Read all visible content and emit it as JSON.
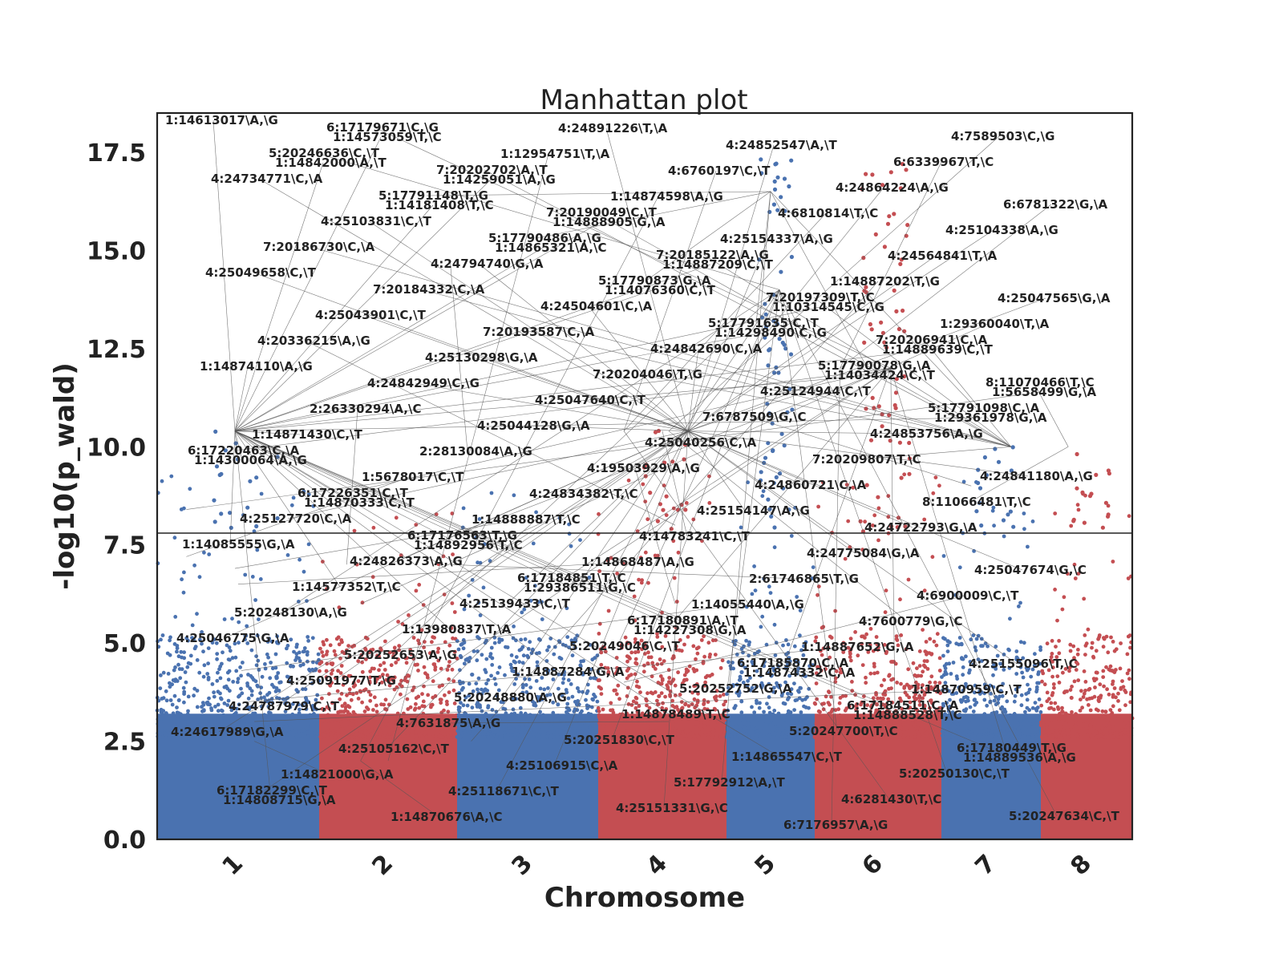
{
  "chart_data": {
    "type": "scatter",
    "title": "Manhattan plot",
    "xlabel": "Chromosome",
    "ylabel": "-log10(p_wald)",
    "ylim": [
      0,
      18.5
    ],
    "yticks": [
      "0.0",
      "2.5",
      "5.0",
      "7.5",
      "10.0",
      "12.5",
      "15.0",
      "17.5"
    ],
    "ytick_values": [
      0,
      2.5,
      5,
      7.5,
      10,
      12.5,
      15,
      17.5
    ],
    "significance_threshold": 7.8,
    "grid": false,
    "legend": "none",
    "colors": {
      "odd": "#4a72b0",
      "even": "#c44e52",
      "threshold": "#222222",
      "leader": "#555555",
      "frame": "#222222"
    },
    "chromosomes": [
      {
        "name": "1",
        "color": "#4a72b0",
        "peak": 10.5
      },
      {
        "name": "2",
        "color": "#c44e52",
        "peak": 6.5
      },
      {
        "name": "3",
        "color": "#4a72b0",
        "peak": 7.0
      },
      {
        "name": "4",
        "color": "#c44e52",
        "peak": 10.5
      },
      {
        "name": "5",
        "color": "#4a72b0",
        "peak": 17.5
      },
      {
        "name": "6",
        "color": "#c44e52",
        "peak": 17.5
      },
      {
        "name": "7",
        "color": "#4a72b0",
        "peak": 10.0
      },
      {
        "name": "8",
        "color": "#c44e52",
        "peak": 10.0
      }
    ],
    "annotations": [
      {
        "label": "1:14613017\\A,\\G",
        "chr": 0,
        "pos": 0.48,
        "y": 10.4
      },
      {
        "label": "1:14842000\\A,\\T",
        "chr": 0,
        "pos": 0.48,
        "y": 10.4
      },
      {
        "label": "1:14181408\\T,\\C",
        "chr": 0,
        "pos": 0.48,
        "y": 10.4
      },
      {
        "label": "1:14865321\\A,\\C",
        "chr": 0,
        "pos": 0.48,
        "y": 10.4
      },
      {
        "label": "1:14076360\\C,\\T",
        "chr": 0,
        "pos": 0.48,
        "y": 10.4
      },
      {
        "label": "1:14298490\\C,\\G",
        "chr": 0,
        "pos": 0.48,
        "y": 10.4
      },
      {
        "label": "1:14034424\\C,\\T",
        "chr": 0,
        "pos": 0.48,
        "y": 10.4
      },
      {
        "label": "1:29361978\\G,\\A",
        "chr": 0,
        "pos": 0.48,
        "y": 10.4
      },
      {
        "label": "1:14300064\\A,\\G",
        "chr": 0,
        "pos": 0.48,
        "y": 10.4
      },
      {
        "label": "1:14870333\\C,\\T",
        "chr": 0,
        "pos": 0.48,
        "y": 10.4
      },
      {
        "label": "1:14892956\\T,\\C",
        "chr": 0,
        "pos": 0.48,
        "y": 10.4
      },
      {
        "label": "1:29386511\\G,\\C",
        "chr": 0,
        "pos": 0.48,
        "y": 10.4
      },
      {
        "label": "1:14227308\\G,\\A",
        "chr": 0,
        "pos": 0.48,
        "y": 10.4
      },
      {
        "label": "1:14874332\\C,\\A",
        "chr": 0,
        "pos": 0.48,
        "y": 10.4
      },
      {
        "label": "1:14888528\\T,\\C",
        "chr": 0,
        "pos": 0.48,
        "y": 10.4
      },
      {
        "label": "1:14889536\\A,\\G",
        "chr": 0,
        "pos": 0.48,
        "y": 10.4
      },
      {
        "label": "1:14808715\\G,\\A",
        "chr": 0,
        "pos": 0.48,
        "y": 10.4
      },
      {
        "label": "1:14573059\\T,\\C",
        "chr": 0,
        "pos": 0.48,
        "y": 10.4
      },
      {
        "label": "1:14259051\\A,\\G",
        "chr": 0,
        "pos": 0.48,
        "y": 10.4
      },
      {
        "label": "1:14888905\\G,\\A",
        "chr": 0,
        "pos": 0.48,
        "y": 10.4
      },
      {
        "label": "1:14887209\\C,\\T",
        "chr": 0,
        "pos": 0.48,
        "y": 10.4
      },
      {
        "label": "1:10314545\\C,\\G",
        "chr": 0,
        "pos": 0.48,
        "y": 10.4
      },
      {
        "label": "1:14889639\\C,\\T",
        "chr": 0,
        "pos": 0.48,
        "y": 10.4
      },
      {
        "label": "1:5658499\\G,\\A",
        "chr": 0,
        "pos": 0.18,
        "y": 8.4
      },
      {
        "label": "1:14871430\\C,\\T",
        "chr": 0,
        "pos": 0.48,
        "y": 10.4
      },
      {
        "label": "1:5678017\\C,\\T",
        "chr": 0,
        "pos": 0.18,
        "y": 7.2
      },
      {
        "label": "1:14888887\\T,\\C",
        "chr": 0,
        "pos": 0.48,
        "y": 6.9
      },
      {
        "label": "1:14868487\\A,\\G",
        "chr": 0,
        "pos": 0.5,
        "y": 6.5
      },
      {
        "label": "1:14055440\\A,\\G",
        "chr": 0,
        "pos": 0.52,
        "y": 4.3
      },
      {
        "label": "1:14887652\\G,\\A",
        "chr": 0,
        "pos": 0.55,
        "y": 3.5
      },
      {
        "label": "1:14870959\\C,\\T",
        "chr": 0,
        "pos": 0.6,
        "y": 3.0
      },
      {
        "label": "4:24617989\\G,\\A",
        "chr": 3,
        "pos": 0.7,
        "y": 10.4
      },
      {
        "label": "1:14821000\\G,\\A",
        "chr": 0,
        "pos": 0.6,
        "y": 2.5
      },
      {
        "label": "1:14870676\\A,\\C",
        "chr": 1,
        "pos": 0.3,
        "y": 2.0
      },
      {
        "label": "1:12954751\\T,\\A",
        "chr": 1,
        "pos": 0.5,
        "y": 2.0
      },
      {
        "label": "1:14874598\\A,\\G",
        "chr": 1,
        "pos": 0.3,
        "y": 2.0
      },
      {
        "label": "4:25154337\\A,\\G",
        "chr": 3,
        "pos": 0.7,
        "y": 10.4
      },
      {
        "label": "1:14887202\\T,\\G",
        "chr": 2,
        "pos": 0.1,
        "y": 2.5
      },
      {
        "label": "1:29360040\\T,\\A",
        "chr": 1,
        "pos": 0.3,
        "y": 6.0
      },
      {
        "label": "1:14874110\\A,\\G",
        "chr": 0,
        "pos": 0.48,
        "y": 10.4
      },
      {
        "label": "2:26330294\\A,\\C",
        "chr": 1,
        "pos": 0.2,
        "y": 7.0
      },
      {
        "label": "2:28130084\\A,\\G",
        "chr": 1,
        "pos": 0.95,
        "y": 14.7
      },
      {
        "label": "4:24834382\\T,\\C",
        "chr": 3,
        "pos": 0.7,
        "y": 10.4
      },
      {
        "label": "4:14783241\\C,\\T",
        "chr": 3,
        "pos": 0.5,
        "y": 10.4
      },
      {
        "label": "2:61746865\\T,\\G",
        "chr": 1,
        "pos": 0.95,
        "y": 7.0
      },
      {
        "label": "4:7600779\\G,\\C",
        "chr": 3,
        "pos": 0.55,
        "y": 10.4
      },
      {
        "label": "4:25155096\\T,\\C",
        "chr": 3,
        "pos": 0.7,
        "y": 10.4
      },
      {
        "label": "4:24787979\\C,\\T",
        "chr": 3,
        "pos": 0.7,
        "y": 10.4
      },
      {
        "label": "4:25105162\\C,\\T",
        "chr": 3,
        "pos": 0.7,
        "y": 10.4
      },
      {
        "label": "4:25118671\\C,\\T",
        "chr": 3,
        "pos": 0.7,
        "y": 10.4
      },
      {
        "label": "4:24891226\\T,\\A",
        "chr": 3,
        "pos": 0.7,
        "y": 10.4
      },
      {
        "label": "4:6760197\\C,\\T",
        "chr": 3,
        "pos": 0.2,
        "y": 10.4
      },
      {
        "label": "4:6810814\\T,\\C",
        "chr": 3,
        "pos": 0.2,
        "y": 10.4
      },
      {
        "label": "4:24564841\\T,\\A",
        "chr": 3,
        "pos": 0.7,
        "y": 10.4
      },
      {
        "label": "4:25047565\\G,\\A",
        "chr": 3,
        "pos": 0.7,
        "y": 10.4
      },
      {
        "label": "4:20336215\\A,\\G",
        "chr": 3,
        "pos": 0.6,
        "y": 8.0
      },
      {
        "label": "4:24842949\\C,\\G",
        "chr": 3,
        "pos": 0.7,
        "y": 10.4
      },
      {
        "label": "4:25044128\\G,\\A",
        "chr": 3,
        "pos": 0.7,
        "y": 10.4
      },
      {
        "label": "4:19503929\\A,\\G",
        "chr": 3,
        "pos": 0.6,
        "y": 6.0
      },
      {
        "label": "4:25154147\\A,\\G",
        "chr": 3,
        "pos": 0.7,
        "y": 10.4
      },
      {
        "label": "4:24775084\\G,\\A",
        "chr": 3,
        "pos": 0.7,
        "y": 10.4
      },
      {
        "label": "4:6900009\\C,\\T",
        "chr": 3,
        "pos": 0.2,
        "y": 4.0
      },
      {
        "label": "4:25046775\\G,\\A",
        "chr": 3,
        "pos": 0.7,
        "y": 10.4
      },
      {
        "label": "4:25091977\\T,\\G",
        "chr": 3,
        "pos": 0.7,
        "y": 10.4
      },
      {
        "label": "4:7631875\\A,\\G",
        "chr": 3,
        "pos": 0.55,
        "y": 3.0
      },
      {
        "label": "4:25106915\\C,\\A",
        "chr": 3,
        "pos": 0.7,
        "y": 10.4
      },
      {
        "label": "4:25151331\\G,\\C",
        "chr": 3,
        "pos": 0.7,
        "y": 10.4
      },
      {
        "label": "4:24852547\\A,\\T",
        "chr": 3,
        "pos": 0.7,
        "y": 10.4
      },
      {
        "label": "4:24864224\\A,\\G",
        "chr": 3,
        "pos": 0.7,
        "y": 10.4
      },
      {
        "label": "4:25104338\\A,\\G",
        "chr": 3,
        "pos": 0.7,
        "y": 10.4
      },
      {
        "label": "4:25049658\\C,\\T",
        "chr": 3,
        "pos": 0.7,
        "y": 10.4
      },
      {
        "label": "4:25043901\\C,\\T",
        "chr": 3,
        "pos": 0.7,
        "y": 10.4
      },
      {
        "label": "4:25130298\\G,\\A",
        "chr": 3,
        "pos": 0.7,
        "y": 10.4
      },
      {
        "label": "4:25047640\\C,\\T",
        "chr": 3,
        "pos": 0.7,
        "y": 10.4
      },
      {
        "label": "4:25040256\\C,\\A",
        "chr": 3,
        "pos": 0.7,
        "y": 10.4
      },
      {
        "label": "4:24860721\\C,\\A",
        "chr": 3,
        "pos": 0.7,
        "y": 10.4
      },
      {
        "label": "4:24722793\\G,\\A",
        "chr": 3,
        "pos": 0.7,
        "y": 10.4
      },
      {
        "label": "4:25047674\\G,\\C",
        "chr": 3,
        "pos": 0.7,
        "y": 10.4
      },
      {
        "label": "5:20248130\\A,\\G",
        "chr": 4,
        "pos": 0.6,
        "y": 14.0
      },
      {
        "label": "5:20252653\\A,\\G",
        "chr": 4,
        "pos": 0.6,
        "y": 14.0
      },
      {
        "label": "5:20248880\\A,\\G",
        "chr": 4,
        "pos": 0.6,
        "y": 14.0
      },
      {
        "label": "5:20251830\\C,\\T",
        "chr": 4,
        "pos": 0.6,
        "y": 14.0
      },
      {
        "label": "5:17792912\\A,\\T",
        "chr": 4,
        "pos": 0.5,
        "y": 16.5
      },
      {
        "label": "6:7176957\\A,\\G",
        "chr": 5,
        "pos": 0.2,
        "y": 12.0
      },
      {
        "label": "6:6339967\\T,\\C",
        "chr": 5,
        "pos": 0.2,
        "y": 12.0
      },
      {
        "label": "6:6781322\\G,\\A",
        "chr": 5,
        "pos": 0.2,
        "y": 12.0
      },
      {
        "label": "7:20186730\\C,\\A",
        "chr": 6,
        "pos": 0.7,
        "y": 10.0
      },
      {
        "label": "7:20184332\\C,\\A",
        "chr": 6,
        "pos": 0.7,
        "y": 10.0
      },
      {
        "label": "7:20193587\\C,\\A",
        "chr": 6,
        "pos": 0.7,
        "y": 10.0
      },
      {
        "label": "7:20204046\\T,\\G",
        "chr": 6,
        "pos": 0.7,
        "y": 10.0
      },
      {
        "label": "7:6787509\\G,\\C",
        "chr": 6,
        "pos": 0.3,
        "y": 9.0
      },
      {
        "label": "7:20209807\\T,\\C",
        "chr": 6,
        "pos": 0.7,
        "y": 10.0
      },
      {
        "label": "8:11066481\\T,\\C",
        "chr": 7,
        "pos": 0.3,
        "y": 10.0
      },
      {
        "label": "1:14085555\\G,\\A",
        "chr": 0,
        "pos": 0.48,
        "y": 10.4
      },
      {
        "label": "1:14577352\\T,\\C",
        "chr": 0,
        "pos": 0.48,
        "y": 10.4
      },
      {
        "label": "1:13980837\\T,\\A",
        "chr": 0,
        "pos": 0.48,
        "y": 10.4
      },
      {
        "label": "1:14887284\\G,\\A",
        "chr": 0,
        "pos": 0.48,
        "y": 10.4
      },
      {
        "label": "1:14878489\\T,\\C",
        "chr": 0,
        "pos": 0.48,
        "y": 10.4
      },
      {
        "label": "1:14865547\\C,\\T",
        "chr": 0,
        "pos": 0.48,
        "y": 10.4
      },
      {
        "label": "4:6281430\\T,\\C",
        "chr": 3,
        "pos": 0.2,
        "y": 10.4
      },
      {
        "label": "4:7589503\\C,\\G",
        "chr": 3,
        "pos": 0.55,
        "y": 10.4
      },
      {
        "label": "4:24734771\\C,\\A",
        "chr": 3,
        "pos": 0.7,
        "y": 10.4
      },
      {
        "label": "4:25103831\\C,\\T",
        "chr": 3,
        "pos": 0.7,
        "y": 10.4
      },
      {
        "label": "4:24794740\\G,\\A",
        "chr": 3,
        "pos": 0.7,
        "y": 10.4
      },
      {
        "label": "4:24504601\\C,\\A",
        "chr": 3,
        "pos": 0.7,
        "y": 10.4
      },
      {
        "label": "4:24842690\\C,\\A",
        "chr": 3,
        "pos": 0.7,
        "y": 10.4
      },
      {
        "label": "4:25124944\\C,\\T",
        "chr": 3,
        "pos": 0.7,
        "y": 10.4
      },
      {
        "label": "4:24853756\\A,\\G",
        "chr": 3,
        "pos": 0.7,
        "y": 10.4
      },
      {
        "label": "4:24841180\\A,\\G",
        "chr": 3,
        "pos": 0.7,
        "y": 10.4
      },
      {
        "label": "4:25127720\\C,\\A",
        "chr": 3,
        "pos": 0.7,
        "y": 10.4
      },
      {
        "label": "4:24826373\\A,\\G",
        "chr": 3,
        "pos": 0.7,
        "y": 10.4
      },
      {
        "label": "4:25139433\\C,\\T",
        "chr": 3,
        "pos": 0.7,
        "y": 10.4
      },
      {
        "label": "5:20249046\\C,\\T",
        "chr": 4,
        "pos": 0.6,
        "y": 14.0
      },
      {
        "label": "5:20252752\\G,\\A",
        "chr": 4,
        "pos": 0.6,
        "y": 14.0
      },
      {
        "label": "5:20247700\\T,\\C",
        "chr": 4,
        "pos": 0.6,
        "y": 14.0
      },
      {
        "label": "5:20250130\\C,\\T",
        "chr": 4,
        "pos": 0.6,
        "y": 14.0
      },
      {
        "label": "5:20247634\\C,\\T",
        "chr": 4,
        "pos": 0.6,
        "y": 14.0
      },
      {
        "label": "5:20246636\\C,\\T",
        "chr": 4,
        "pos": 0.6,
        "y": 14.0
      },
      {
        "label": "5:17791148\\T,\\G",
        "chr": 4,
        "pos": 0.5,
        "y": 16.5
      },
      {
        "label": "5:17790486\\A,\\G",
        "chr": 4,
        "pos": 0.5,
        "y": 16.5
      },
      {
        "label": "5:17790873\\G,\\A",
        "chr": 4,
        "pos": 0.5,
        "y": 16.5
      },
      {
        "label": "5:17791635\\C,\\T",
        "chr": 4,
        "pos": 0.5,
        "y": 16.5
      },
      {
        "label": "5:17790078\\G,\\A",
        "chr": 4,
        "pos": 0.5,
        "y": 16.5
      },
      {
        "label": "5:17791098\\C,\\A",
        "chr": 4,
        "pos": 0.5,
        "y": 16.5
      },
      {
        "label": "6:17220463\\C,\\A",
        "chr": 5,
        "pos": 0.6,
        "y": 12.0
      },
      {
        "label": "6:17226351\\C,\\T",
        "chr": 5,
        "pos": 0.6,
        "y": 12.0
      },
      {
        "label": "6:17176563\\T,\\G",
        "chr": 5,
        "pos": 0.6,
        "y": 12.0
      },
      {
        "label": "6:17184851\\T,\\C",
        "chr": 5,
        "pos": 0.6,
        "y": 12.0
      },
      {
        "label": "6:17180891\\A,\\T",
        "chr": 5,
        "pos": 0.6,
        "y": 12.0
      },
      {
        "label": "6:17185870\\C,\\A",
        "chr": 5,
        "pos": 0.6,
        "y": 12.0
      },
      {
        "label": "6:17184511\\C,\\A",
        "chr": 5,
        "pos": 0.6,
        "y": 12.0
      },
      {
        "label": "6:17180449\\T,\\G",
        "chr": 5,
        "pos": 0.6,
        "y": 12.0
      },
      {
        "label": "6:17182299\\C,\\T",
        "chr": 5,
        "pos": 0.6,
        "y": 12.0
      },
      {
        "label": "6:17179671\\C,\\G",
        "chr": 5,
        "pos": 0.6,
        "y": 12.0
      },
      {
        "label": "7:20202702\\A,\\T",
        "chr": 6,
        "pos": 0.7,
        "y": 10.0
      },
      {
        "label": "7:20190049\\C,\\T",
        "chr": 6,
        "pos": 0.7,
        "y": 10.0
      },
      {
        "label": "7:20185122\\A,\\G",
        "chr": 6,
        "pos": 0.7,
        "y": 10.0
      },
      {
        "label": "7:20197309\\T,\\C",
        "chr": 6,
        "pos": 0.7,
        "y": 10.0
      },
      {
        "label": "7:20206941\\C,\\A",
        "chr": 6,
        "pos": 0.7,
        "y": 10.0
      },
      {
        "label": "8:11070466\\T,\\C",
        "chr": 7,
        "pos": 0.3,
        "y": 10.0
      }
    ]
  }
}
